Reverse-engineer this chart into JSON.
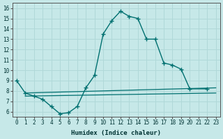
{
  "xlabel": "Humidex (Indice chaleur)",
  "xlim": [
    -0.5,
    23.5
  ],
  "ylim": [
    5.5,
    16.5
  ],
  "xticks": [
    0,
    1,
    2,
    3,
    4,
    5,
    6,
    7,
    8,
    9,
    10,
    11,
    12,
    13,
    14,
    15,
    16,
    17,
    18,
    19,
    20,
    21,
    22,
    23
  ],
  "yticks": [
    6,
    7,
    8,
    9,
    10,
    11,
    12,
    13,
    14,
    15,
    16
  ],
  "bg_color": "#c6e8e8",
  "grid_color": "#b0d8d8",
  "line_color": "#007070",
  "line1_x": [
    0,
    1,
    2,
    3,
    4,
    5,
    6,
    7,
    8,
    9,
    10,
    11,
    12,
    13,
    14,
    15,
    16,
    17,
    18,
    19,
    20,
    22
  ],
  "line1_y": [
    9.0,
    7.8,
    7.5,
    7.2,
    6.5,
    5.8,
    5.9,
    6.5,
    8.3,
    9.5,
    13.5,
    14.8,
    15.7,
    15.2,
    15.0,
    13.0,
    13.0,
    10.7,
    10.5,
    10.1,
    8.2,
    8.2
  ],
  "line2_x": [
    1,
    23
  ],
  "line2_y": [
    7.8,
    8.3
  ],
  "line3_x": [
    1,
    23
  ],
  "line3_y": [
    7.5,
    7.8
  ]
}
